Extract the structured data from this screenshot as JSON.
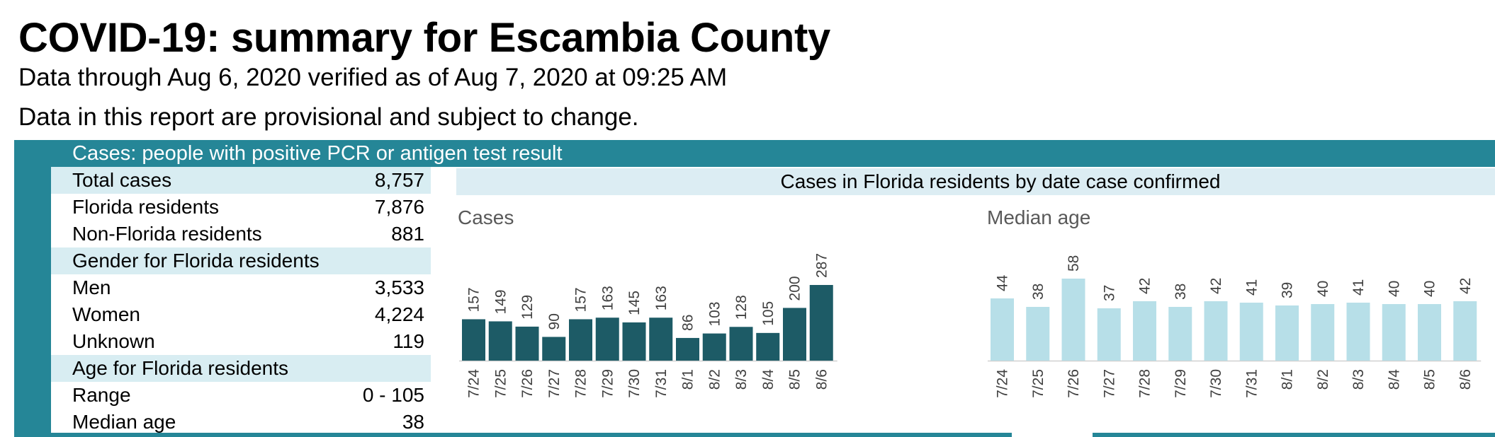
{
  "header": {
    "title": "COVID-19: summary for Escambia County",
    "subtitle": "Data through Aug 6, 2020 verified as of Aug 7, 2020 at 09:25 AM",
    "note": "Data in this report are provisional and subject to change."
  },
  "section_title": "Cases: people with positive PCR or antigen test result",
  "stats": [
    {
      "label": "Total cases",
      "value": "8,757",
      "header": true
    },
    {
      "label": "Florida residents",
      "value": "7,876"
    },
    {
      "label": "Non-Florida residents",
      "value": "881"
    },
    {
      "label": "Gender for Florida residents",
      "value": "",
      "header": true
    },
    {
      "label": "Men",
      "value": "3,533"
    },
    {
      "label": "Women",
      "value": "4,224"
    },
    {
      "label": "Unknown",
      "value": "119"
    },
    {
      "label": "Age for Florida residents",
      "value": "",
      "header": true
    },
    {
      "label": "Range",
      "value": "0 - 105"
    },
    {
      "label": "Median age",
      "value": "38"
    }
  ],
  "charts_title": "Cases in Florida residents by date case confirmed",
  "colors": {
    "accent": "#258697",
    "cases_bar": "#1d5b66",
    "age_bar": "#b7dfe8",
    "header_fill": "#d8edf2"
  },
  "chart_data": [
    {
      "type": "bar",
      "title": "Cases",
      "categories": [
        "7/24",
        "7/25",
        "7/26",
        "7/27",
        "7/28",
        "7/29",
        "7/30",
        "7/31",
        "8/1",
        "8/2",
        "8/3",
        "8/4",
        "8/5",
        "8/6"
      ],
      "values": [
        157,
        149,
        129,
        90,
        157,
        163,
        145,
        163,
        86,
        103,
        128,
        105,
        200,
        287
      ],
      "ylim": [
        0,
        300
      ]
    },
    {
      "type": "bar",
      "title": "Median age",
      "categories": [
        "7/24",
        "7/25",
        "7/26",
        "7/27",
        "7/28",
        "7/29",
        "7/30",
        "7/31",
        "8/1",
        "8/2",
        "8/3",
        "8/4",
        "8/5",
        "8/6"
      ],
      "values": [
        44,
        38,
        58,
        37,
        42,
        38,
        42,
        41,
        39,
        40,
        41,
        40,
        40,
        42
      ],
      "ylim": [
        0,
        60
      ]
    }
  ]
}
